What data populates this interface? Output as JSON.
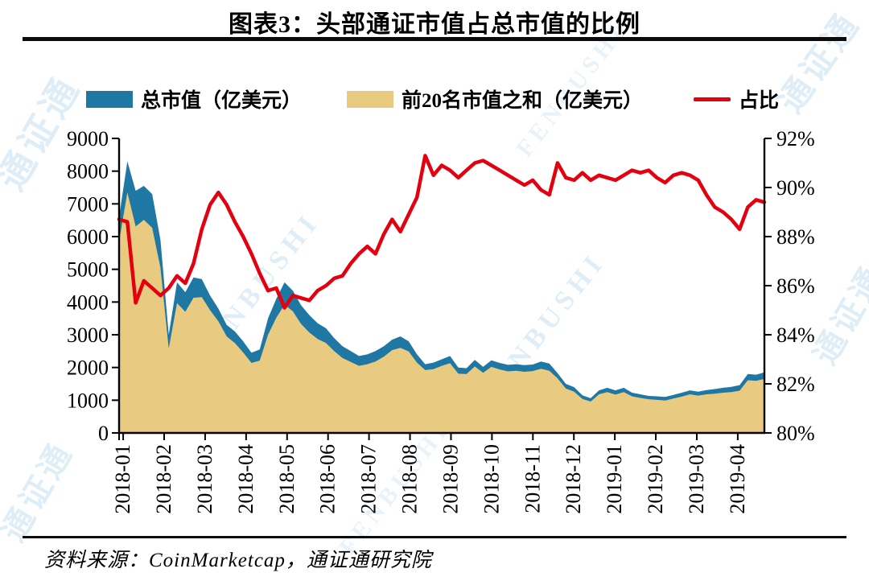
{
  "title": "图表3：头部通证市值占总市值的比例",
  "legend": {
    "items": [
      {
        "label": "总市值（亿美元）",
        "swatch": "area",
        "color": "#1F77A4"
      },
      {
        "label": "前20名市值之和（亿美元）",
        "swatch": "area",
        "color": "#E8CB80"
      },
      {
        "label": "占比",
        "swatch": "line",
        "color": "#E3000F"
      }
    ]
  },
  "source_note": "资料来源：CoinMarketcap，通证通研究院",
  "watermarks": [
    "通证通",
    "FENBUSHI"
  ],
  "colors": {
    "total_area": "#1F77A4",
    "top20_area": "#E8CB80",
    "ratio_line": "#E3000F",
    "axis": "#000000",
    "rule": "#0B0B0B",
    "watermark": "#B5D7EB"
  },
  "chart_data": {
    "type": "area",
    "subtype": "dual-axis combo: two overlaid areas (left axis) + line (right axis)",
    "grid": false,
    "legend_position": "top",
    "x_unit": "months since 2018-01, sampled every 0.2 month",
    "x_start": 0,
    "x_step": 0.2,
    "x_tick_labels": [
      "2018-01",
      "2018-02",
      "2018-03",
      "2018-04",
      "2018-05",
      "2018-06",
      "2018-07",
      "2018-08",
      "2018-09",
      "2018-10",
      "2018-11",
      "2018-12",
      "2019-01",
      "2019-02",
      "2019-03",
      "2019-04"
    ],
    "y_left": {
      "min": 0,
      "max": 9000,
      "tick_labels": [
        "9000",
        "8000",
        "7000",
        "6000",
        "5000",
        "4000",
        "3000",
        "2000",
        "1000",
        "0"
      ]
    },
    "y_right": {
      "min": 80,
      "max": 92,
      "tick_labels": [
        "92%",
        "90%",
        "88%",
        "86%",
        "84%",
        "82%",
        "80%"
      ]
    },
    "series": [
      {
        "name": "总市值（亿美元）",
        "type": "area",
        "axis": "left",
        "color": "#1F77A4",
        "values": [
          6600,
          8300,
          7400,
          7550,
          7300,
          5900,
          3000,
          4600,
          4300,
          4750,
          4700,
          4200,
          3800,
          3300,
          3100,
          2800,
          2450,
          2550,
          3500,
          4100,
          4600,
          4350,
          3900,
          3600,
          3350,
          3200,
          2900,
          2650,
          2500,
          2350,
          2400,
          2500,
          2650,
          2850,
          2950,
          2800,
          2400,
          2100,
          2150,
          2250,
          2350,
          2000,
          1980,
          2230,
          2020,
          2220,
          2140,
          2080,
          2100,
          2070,
          2090,
          2180,
          2120,
          1830,
          1500,
          1400,
          1150,
          1060,
          1300,
          1380,
          1300,
          1380,
          1230,
          1180,
          1130,
          1120,
          1100,
          1160,
          1230,
          1300,
          1260,
          1310,
          1340,
          1380,
          1410,
          1460,
          1800,
          1780,
          1850
        ]
      },
      {
        "name": "前20名市值之和（亿美元）",
        "type": "area",
        "axis": "left",
        "color": "#E8CB80",
        "values": [
          5850,
          7350,
          6310,
          6510,
          6270,
          5050,
          2580,
          3970,
          3700,
          4130,
          4150,
          3750,
          3410,
          2950,
          2750,
          2460,
          2140,
          2210,
          3000,
          3520,
          3920,
          3720,
          3330,
          3070,
          2870,
          2750,
          2500,
          2290,
          2170,
          2050,
          2100,
          2180,
          2330,
          2530,
          2600,
          2490,
          2150,
          1920,
          1950,
          2050,
          2130,
          1810,
          1800,
          2030,
          1840,
          2020,
          1940,
          1880,
          1900,
          1870,
          1890,
          1960,
          1900,
          1670,
          1360,
          1260,
          1040,
          960,
          1180,
          1250,
          1170,
          1250,
          1120,
          1070,
          1030,
          1010,
          990,
          1050,
          1110,
          1180,
          1140,
          1180,
          1200,
          1230,
          1250,
          1290,
          1610,
          1590,
          1650
        ]
      },
      {
        "name": "占比",
        "type": "line",
        "axis": "right",
        "unit": "%",
        "color": "#E3000F",
        "values": [
          88.7,
          88.6,
          85.3,
          86.2,
          85.9,
          85.6,
          85.9,
          86.4,
          86.1,
          86.9,
          88.3,
          89.3,
          89.8,
          89.3,
          88.6,
          88.0,
          87.3,
          86.5,
          85.8,
          85.9,
          85.1,
          85.6,
          85.5,
          85.4,
          85.8,
          86.0,
          86.3,
          86.4,
          86.9,
          87.3,
          87.6,
          87.3,
          88.1,
          88.7,
          88.2,
          88.9,
          89.6,
          91.3,
          90.5,
          90.9,
          90.7,
          90.4,
          90.7,
          91.0,
          91.1,
          90.9,
          90.7,
          90.5,
          90.3,
          90.1,
          90.3,
          89.9,
          89.7,
          91.0,
          90.4,
          90.3,
          90.6,
          90.3,
          90.5,
          90.4,
          90.3,
          90.5,
          90.7,
          90.6,
          90.7,
          90.4,
          90.2,
          90.5,
          90.6,
          90.5,
          90.3,
          89.7,
          89.2,
          89.0,
          88.7,
          88.3,
          89.2,
          89.5,
          89.4
        ]
      }
    ]
  }
}
